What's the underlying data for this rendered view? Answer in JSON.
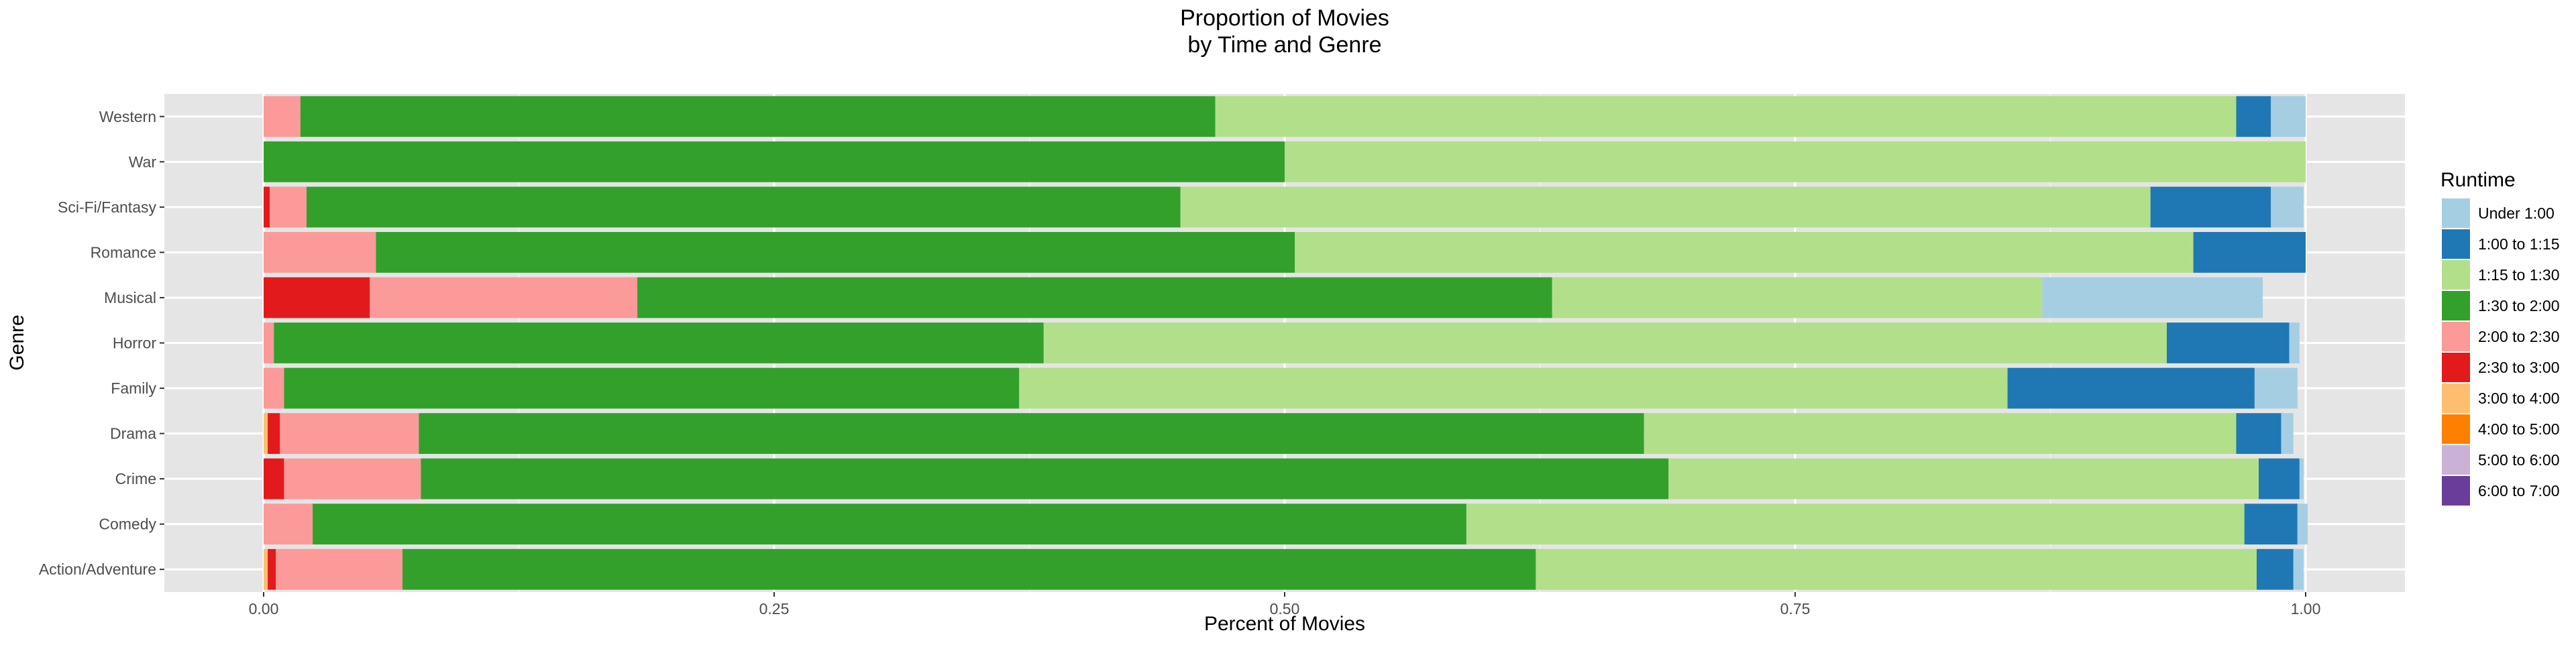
{
  "chart_data": {
    "type": "bar",
    "orientation": "horizontal",
    "stacked": true,
    "title": "Proportion of Movies\nby Time and Genre",
    "xlabel": "Percent of Movies",
    "ylabel": "Genre",
    "xlim": [
      0,
      1
    ],
    "x_ticks": [
      "0.00",
      "0.25",
      "0.50",
      "0.75",
      "1.00"
    ],
    "grid": true,
    "legend_title": "Runtime",
    "legend_position": "right",
    "categories": [
      "Action/Adventure",
      "Comedy",
      "Crime",
      "Drama",
      "Family",
      "Horror",
      "Musical",
      "Romance",
      "Sci-Fi/Fantasy",
      "War",
      "Western"
    ],
    "stack_order": [
      "6:00 to 7:00",
      "5:00 to 6:00",
      "4:00 to 5:00",
      "3:00 to 4:00",
      "2:30 to 3:00",
      "2:00 to 2:30",
      "1:30 to 2:00",
      "1:15 to 1:30",
      "1:00 to 1:15",
      "Under 1:00"
    ],
    "series": [
      {
        "name": "Under 1:00",
        "color": "#a6cee3",
        "values": [
          0.005,
          0.005,
          0.002,
          0.006,
          0.021,
          0.005,
          0.108,
          0.0,
          0.016,
          0.0,
          0.017
        ]
      },
      {
        "name": "1:00 to 1:15",
        "color": "#1f78b4",
        "values": [
          0.018,
          0.026,
          0.02,
          0.022,
          0.121,
          0.06,
          0.0,
          0.055,
          0.059,
          0.0,
          0.017
        ]
      },
      {
        "name": "1:15 to 1:30",
        "color": "#b2df8a",
        "values": [
          0.353,
          0.381,
          0.289,
          0.29,
          0.484,
          0.55,
          0.24,
          0.44,
          0.475,
          0.5,
          0.5
        ]
      },
      {
        "name": "1:30 to 2:00",
        "color": "#33a02c",
        "values": [
          0.555,
          0.565,
          0.611,
          0.6,
          0.36,
          0.377,
          0.448,
          0.45,
          0.428,
          0.5,
          0.448
        ]
      },
      {
        "name": "2:00 to 2:30",
        "color": "#fb9a99",
        "values": [
          0.062,
          0.024,
          0.067,
          0.068,
          0.01,
          0.005,
          0.131,
          0.055,
          0.018,
          0.0,
          0.018
        ]
      },
      {
        "name": "2:30 to 3:00",
        "color": "#e31a1c",
        "values": [
          0.004,
          0.0,
          0.01,
          0.006,
          0.0,
          0.0,
          0.052,
          0.0,
          0.003,
          0.0,
          0.0
        ]
      },
      {
        "name": "3:00 to 4:00",
        "color": "#fdbf6f",
        "values": [
          0.002,
          0.0,
          0.0,
          0.002,
          0.0,
          0.0,
          0.0,
          0.0,
          0.0,
          0.0,
          0.0
        ]
      },
      {
        "name": "4:00 to 5:00",
        "color": "#ff7f00",
        "values": [
          0.0,
          0.0,
          0.0,
          0.0,
          0.0,
          0.0,
          0.0,
          0.0,
          0.0,
          0.0,
          0.0
        ]
      },
      {
        "name": "5:00 to 6:00",
        "color": "#cab2d6",
        "values": [
          0.0,
          0.0,
          0.0,
          0.0,
          0.0,
          0.0,
          0.0,
          0.0,
          0.0,
          0.0,
          0.0
        ]
      },
      {
        "name": "6:00 to 7:00",
        "color": "#6a3d9a",
        "values": [
          0.0,
          0.0,
          0.0,
          0.0,
          0.0,
          0.0,
          0.0,
          0.0,
          0.0,
          0.0,
          0.0
        ]
      }
    ]
  }
}
